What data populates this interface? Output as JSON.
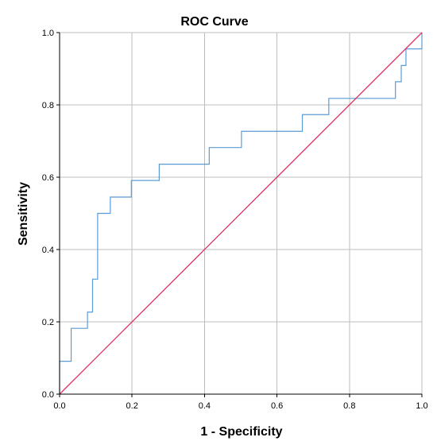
{
  "chart_data": {
    "type": "line",
    "title": "ROC Curve",
    "xlabel": "1 - Specificity",
    "ylabel": "Sensitivity",
    "xlim": [
      0,
      1
    ],
    "ylim": [
      0,
      1
    ],
    "grid": true,
    "x_ticks": [
      "0.0",
      "0.2",
      "0.4",
      "0.6",
      "0.8",
      "1.0"
    ],
    "y_ticks": [
      "0.0",
      "0.2",
      "0.4",
      "0.6",
      "0.8",
      "1.0"
    ],
    "series": [
      {
        "color": "#5b9bd5",
        "x": [
          0.0,
          0.0,
          0.032,
          0.032,
          0.077,
          0.077,
          0.091,
          0.091,
          0.105,
          0.105,
          0.14,
          0.14,
          0.198,
          0.198,
          0.275,
          0.275,
          0.413,
          0.413,
          0.502,
          0.502,
          0.67,
          0.67,
          0.743,
          0.743,
          0.927,
          0.927,
          0.943,
          0.943,
          0.956,
          0.956,
          1.0,
          1.0
        ],
        "y": [
          0.0,
          0.091,
          0.091,
          0.182,
          0.182,
          0.227,
          0.227,
          0.318,
          0.318,
          0.5,
          0.5,
          0.545,
          0.545,
          0.591,
          0.591,
          0.636,
          0.636,
          0.682,
          0.682,
          0.727,
          0.727,
          0.773,
          0.773,
          0.818,
          0.818,
          0.864,
          0.864,
          0.909,
          0.909,
          0.955,
          0.955,
          1.0
        ]
      },
      {
        "color": "#e0315f",
        "x": [
          0.0,
          1.0
        ],
        "y": [
          0.0,
          1.0
        ]
      }
    ]
  }
}
